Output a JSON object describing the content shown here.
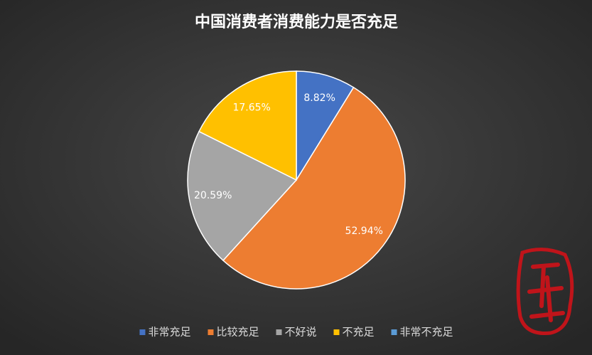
{
  "chart_data": {
    "type": "pie",
    "title": "中国消费者消费能力是否充足",
    "categories": [
      "非常充足",
      "比较充足",
      "不好说",
      "不充足",
      "非常不充足"
    ],
    "values": [
      8.82,
      52.94,
      20.59,
      17.65,
      0
    ],
    "value_labels": [
      "8.82%",
      "52.94%",
      "20.59%",
      "17.65%",
      null
    ],
    "colors": [
      "#4472c4",
      "#ed7d31",
      "#a5a5a5",
      "#ffc000",
      "#5b9bd5"
    ],
    "legend": "bottom"
  }
}
